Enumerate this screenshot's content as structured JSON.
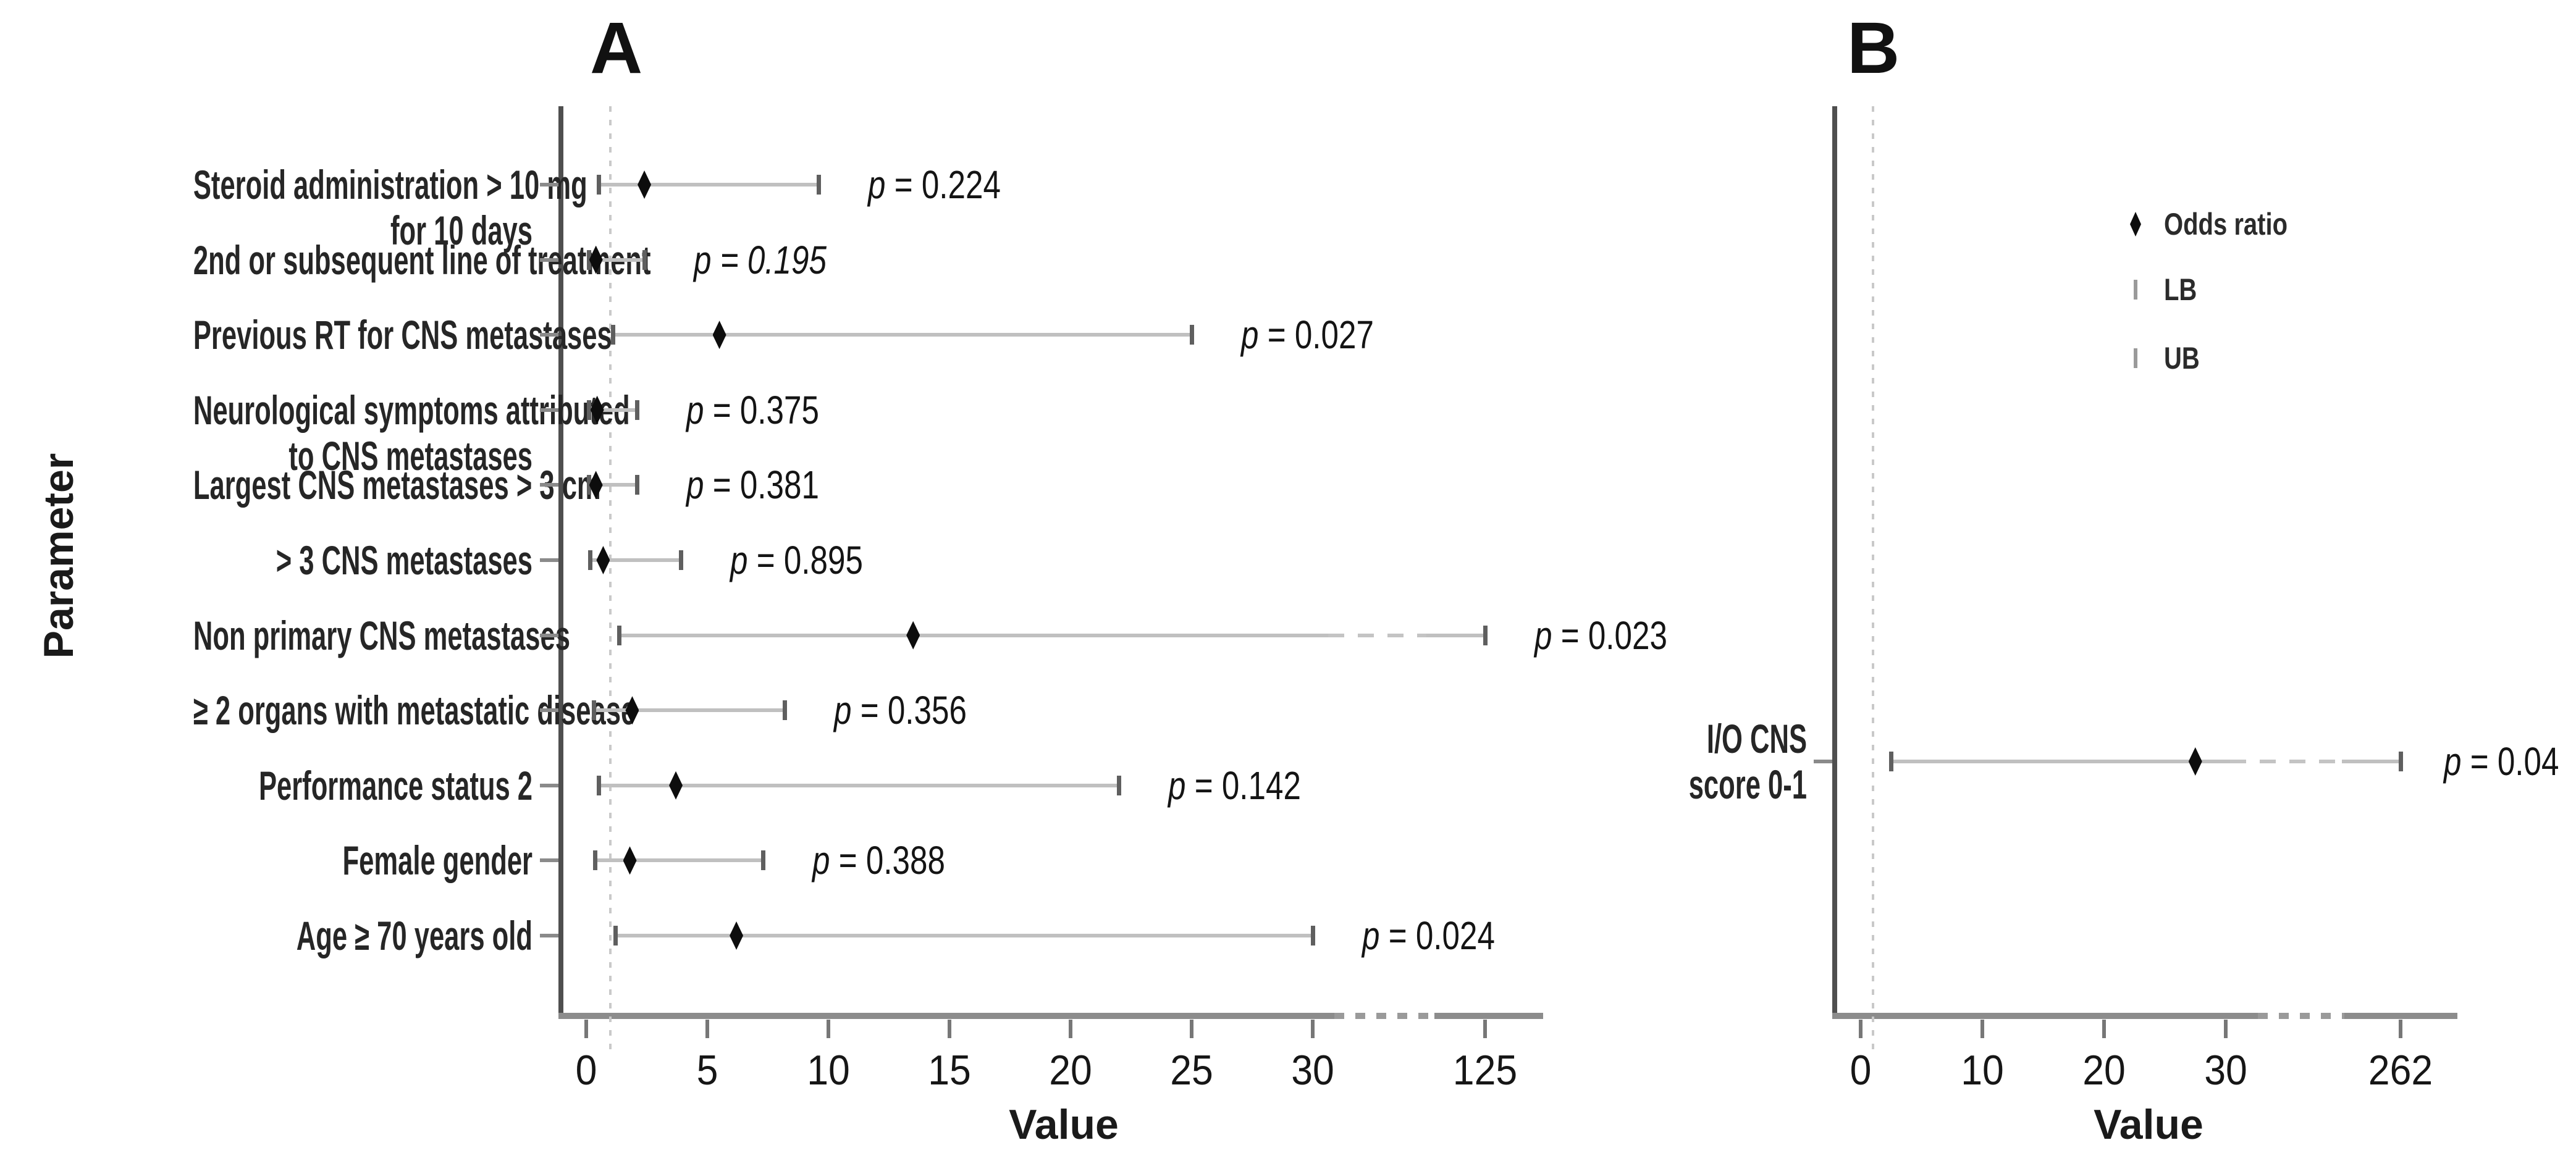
{
  "chart_data": [
    {
      "type": "forest",
      "panel": "A",
      "title": "A",
      "xlabel": "Value",
      "ylabel": "Parameter",
      "x_ticks": [
        0,
        5,
        10,
        15,
        20,
        25,
        30
      ],
      "x_break_tick": 125,
      "ref_line_x": 1,
      "axis_break": {
        "after": 30,
        "resume_at": 125
      },
      "grid": "off",
      "rows": [
        {
          "label_lines": [
            "Steroid administration > 10 mg",
            "for 10 days"
          ],
          "lb": 0.5,
          "or": 2.4,
          "ub": 9.6,
          "p_text": "p = 0.224",
          "p_italic": false
        },
        {
          "label_lines": [
            "2nd or subsequent line of treatment"
          ],
          "lb": 0.1,
          "or": 0.4,
          "ub": 2.4,
          "p_text": "p = 0.195",
          "p_italic": true
        },
        {
          "label_lines": [
            "Previous RT for CNS metastases"
          ],
          "lb": 1.1,
          "or": 5.5,
          "ub": 25,
          "p_text": "p = 0.027",
          "p_italic": false
        },
        {
          "label_lines": [
            "Neurological symptoms attributed",
            "to CNS metastases"
          ],
          "lb": 0.1,
          "or": 0.45,
          "ub": 2.1,
          "p_text": "p = 0.375",
          "p_italic": false
        },
        {
          "label_lines": [
            "Largest CNS  metastases > 3 cm"
          ],
          "lb": 0.1,
          "or": 0.4,
          "ub": 2.1,
          "p_text": "p = 0.381",
          "p_italic": false
        },
        {
          "label_lines": [
            "> 3 CNS metastases"
          ],
          "lb": 0.15,
          "or": 0.7,
          "ub": 3.9,
          "p_text": "p = 0.895",
          "p_italic": false
        },
        {
          "label_lines": [
            "Non primary CNS metastases"
          ],
          "lb": 1.35,
          "or": 13.5,
          "ub": 125,
          "p_text": "p = 0.023",
          "p_italic": false
        },
        {
          "label_lines": [
            "≥ 2 organs with metastatic disease"
          ],
          "lb": 0.3,
          "or": 1.9,
          "ub": 8.2,
          "p_text": "p = 0.356",
          "p_italic": false
        },
        {
          "label_lines": [
            "Performance status 2"
          ],
          "lb": 0.5,
          "or": 3.7,
          "ub": 22,
          "p_text": "p = 0.142",
          "p_italic": false
        },
        {
          "label_lines": [
            "Female gender"
          ],
          "lb": 0.35,
          "or": 1.8,
          "ub": 7.3,
          "p_text": "p = 0.388",
          "p_italic": false
        },
        {
          "label_lines": [
            "Age ≥ 70 years old"
          ],
          "lb": 1.2,
          "or": 6.2,
          "ub": 30,
          "p_text": "p = 0.024",
          "p_italic": false
        }
      ]
    },
    {
      "type": "forest",
      "panel": "B",
      "title": "B",
      "xlabel": "Value",
      "ylabel": "",
      "x_ticks": [
        0,
        10,
        20,
        30
      ],
      "x_break_tick": 262,
      "ref_line_x": 1,
      "axis_break": {
        "after": 30,
        "resume_at": 262
      },
      "grid": "off",
      "legend": [
        {
          "symbol": "diamond",
          "label": "Odds ratio"
        },
        {
          "symbol": "tick",
          "label": "LB"
        },
        {
          "symbol": "tick",
          "label": "UB"
        }
      ],
      "rows": [
        {
          "label_lines": [
            "I/O CNS",
            "score 0-1"
          ],
          "lb": 2.5,
          "or": 27.5,
          "ub": 262,
          "p_text": "p = 0.04",
          "p_italic": false
        }
      ]
    }
  ]
}
